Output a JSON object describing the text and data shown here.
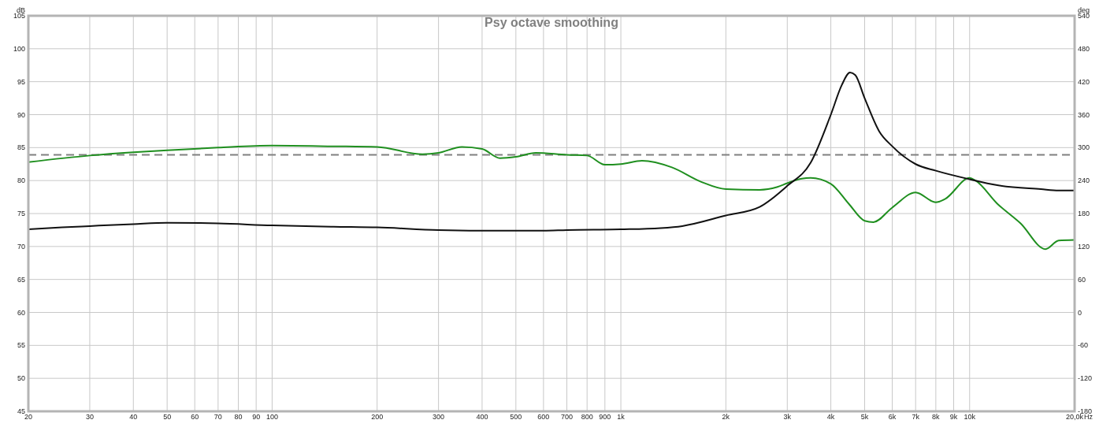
{
  "chart_data": {
    "type": "line",
    "title": "Psy octave smoothing",
    "ylabel": "dB",
    "y2label": "deg",
    "xlabel": "Hz",
    "log": "x",
    "grid": true,
    "line_style": "solid",
    "marker": "none",
    "xlim": [
      20,
      20000
    ],
    "xticks": [
      20,
      30,
      40,
      50,
      60,
      70,
      80,
      90,
      100,
      200,
      300,
      400,
      500,
      600,
      700,
      800,
      900,
      {
        "value": 1000,
        "label": "1k"
      },
      {
        "value": 2000,
        "label": "2k"
      },
      {
        "value": 3000,
        "label": "3k"
      },
      {
        "value": 4000,
        "label": "4k"
      },
      {
        "value": 5000,
        "label": "5k"
      },
      {
        "value": 6000,
        "label": "6k"
      },
      {
        "value": 7000,
        "label": "7k"
      },
      {
        "value": 8000,
        "label": "8k"
      },
      {
        "value": 9000,
        "label": "9k"
      },
      {
        "value": 10000,
        "label": "10k"
      },
      {
        "value": 20000,
        "label": "20,0k"
      }
    ],
    "ylim": [
      45,
      105
    ],
    "yticks": [
      45,
      50,
      55,
      60,
      65,
      70,
      75,
      80,
      85,
      90,
      95,
      100,
      105
    ],
    "y2lim": [
      -180,
      540
    ],
    "y2ticks": [
      -180,
      -120,
      -60,
      0,
      60,
      120,
      180,
      240,
      300,
      360,
      420,
      480,
      540
    ],
    "ref_lines": [
      {
        "axis": "y",
        "value": 83.9,
        "color": "#808080",
        "line_style": "dashed"
      }
    ],
    "series": [
      {
        "color": "#1f8f1f",
        "x": [
          20,
          30,
          40,
          50,
          70,
          100,
          150,
          200,
          270,
          300,
          350,
          400,
          450,
          500,
          570,
          700,
          800,
          900,
          1000,
          1150,
          1400,
          1700,
          2000,
          2500,
          2800,
          3000,
          3300,
          3500,
          4000,
          4500,
          5000,
          5300,
          6000,
          7000,
          8000,
          8500,
          10000,
          10400,
          12000,
          14000,
          16500,
          18000,
          20000
        ],
        "values": [
          82.8,
          83.8,
          84.3,
          84.6,
          85,
          85.3,
          85.2,
          85.1,
          84,
          84.2,
          85.1,
          84.8,
          83.4,
          83.6,
          84.2,
          83.9,
          83.8,
          82.4,
          82.5,
          83,
          82,
          79.8,
          78.7,
          78.6,
          79,
          79.6,
          80.3,
          80.4,
          79.5,
          76.5,
          73.9,
          73.7,
          75.9,
          78.2,
          76.7,
          77.2,
          80.4,
          80,
          76.5,
          73.5,
          69.6,
          70.9,
          71
        ]
      },
      {
        "color": "#111111",
        "x": [
          20,
          25,
          30,
          40,
          50,
          70,
          100,
          150,
          200,
          300,
          450,
          600,
          700,
          1000,
          1300,
          1500,
          2000,
          2500,
          3000,
          3500,
          4000,
          4300,
          4540,
          4700,
          5000,
          5500,
          6000,
          7000,
          8000,
          10000,
          12000,
          16000,
          18000,
          20000
        ],
        "values": [
          72.6,
          72.9,
          73.1,
          73.4,
          73.6,
          73.5,
          73.2,
          73,
          72.9,
          72.5,
          72.4,
          72.4,
          72.5,
          72.6,
          72.8,
          73.1,
          74.7,
          76,
          79.2,
          82.7,
          90,
          94.5,
          96.4,
          96,
          92.5,
          87.5,
          85.2,
          82.5,
          81.5,
          80.2,
          79.3,
          78.7,
          78.5,
          78.5
        ]
      }
    ]
  }
}
